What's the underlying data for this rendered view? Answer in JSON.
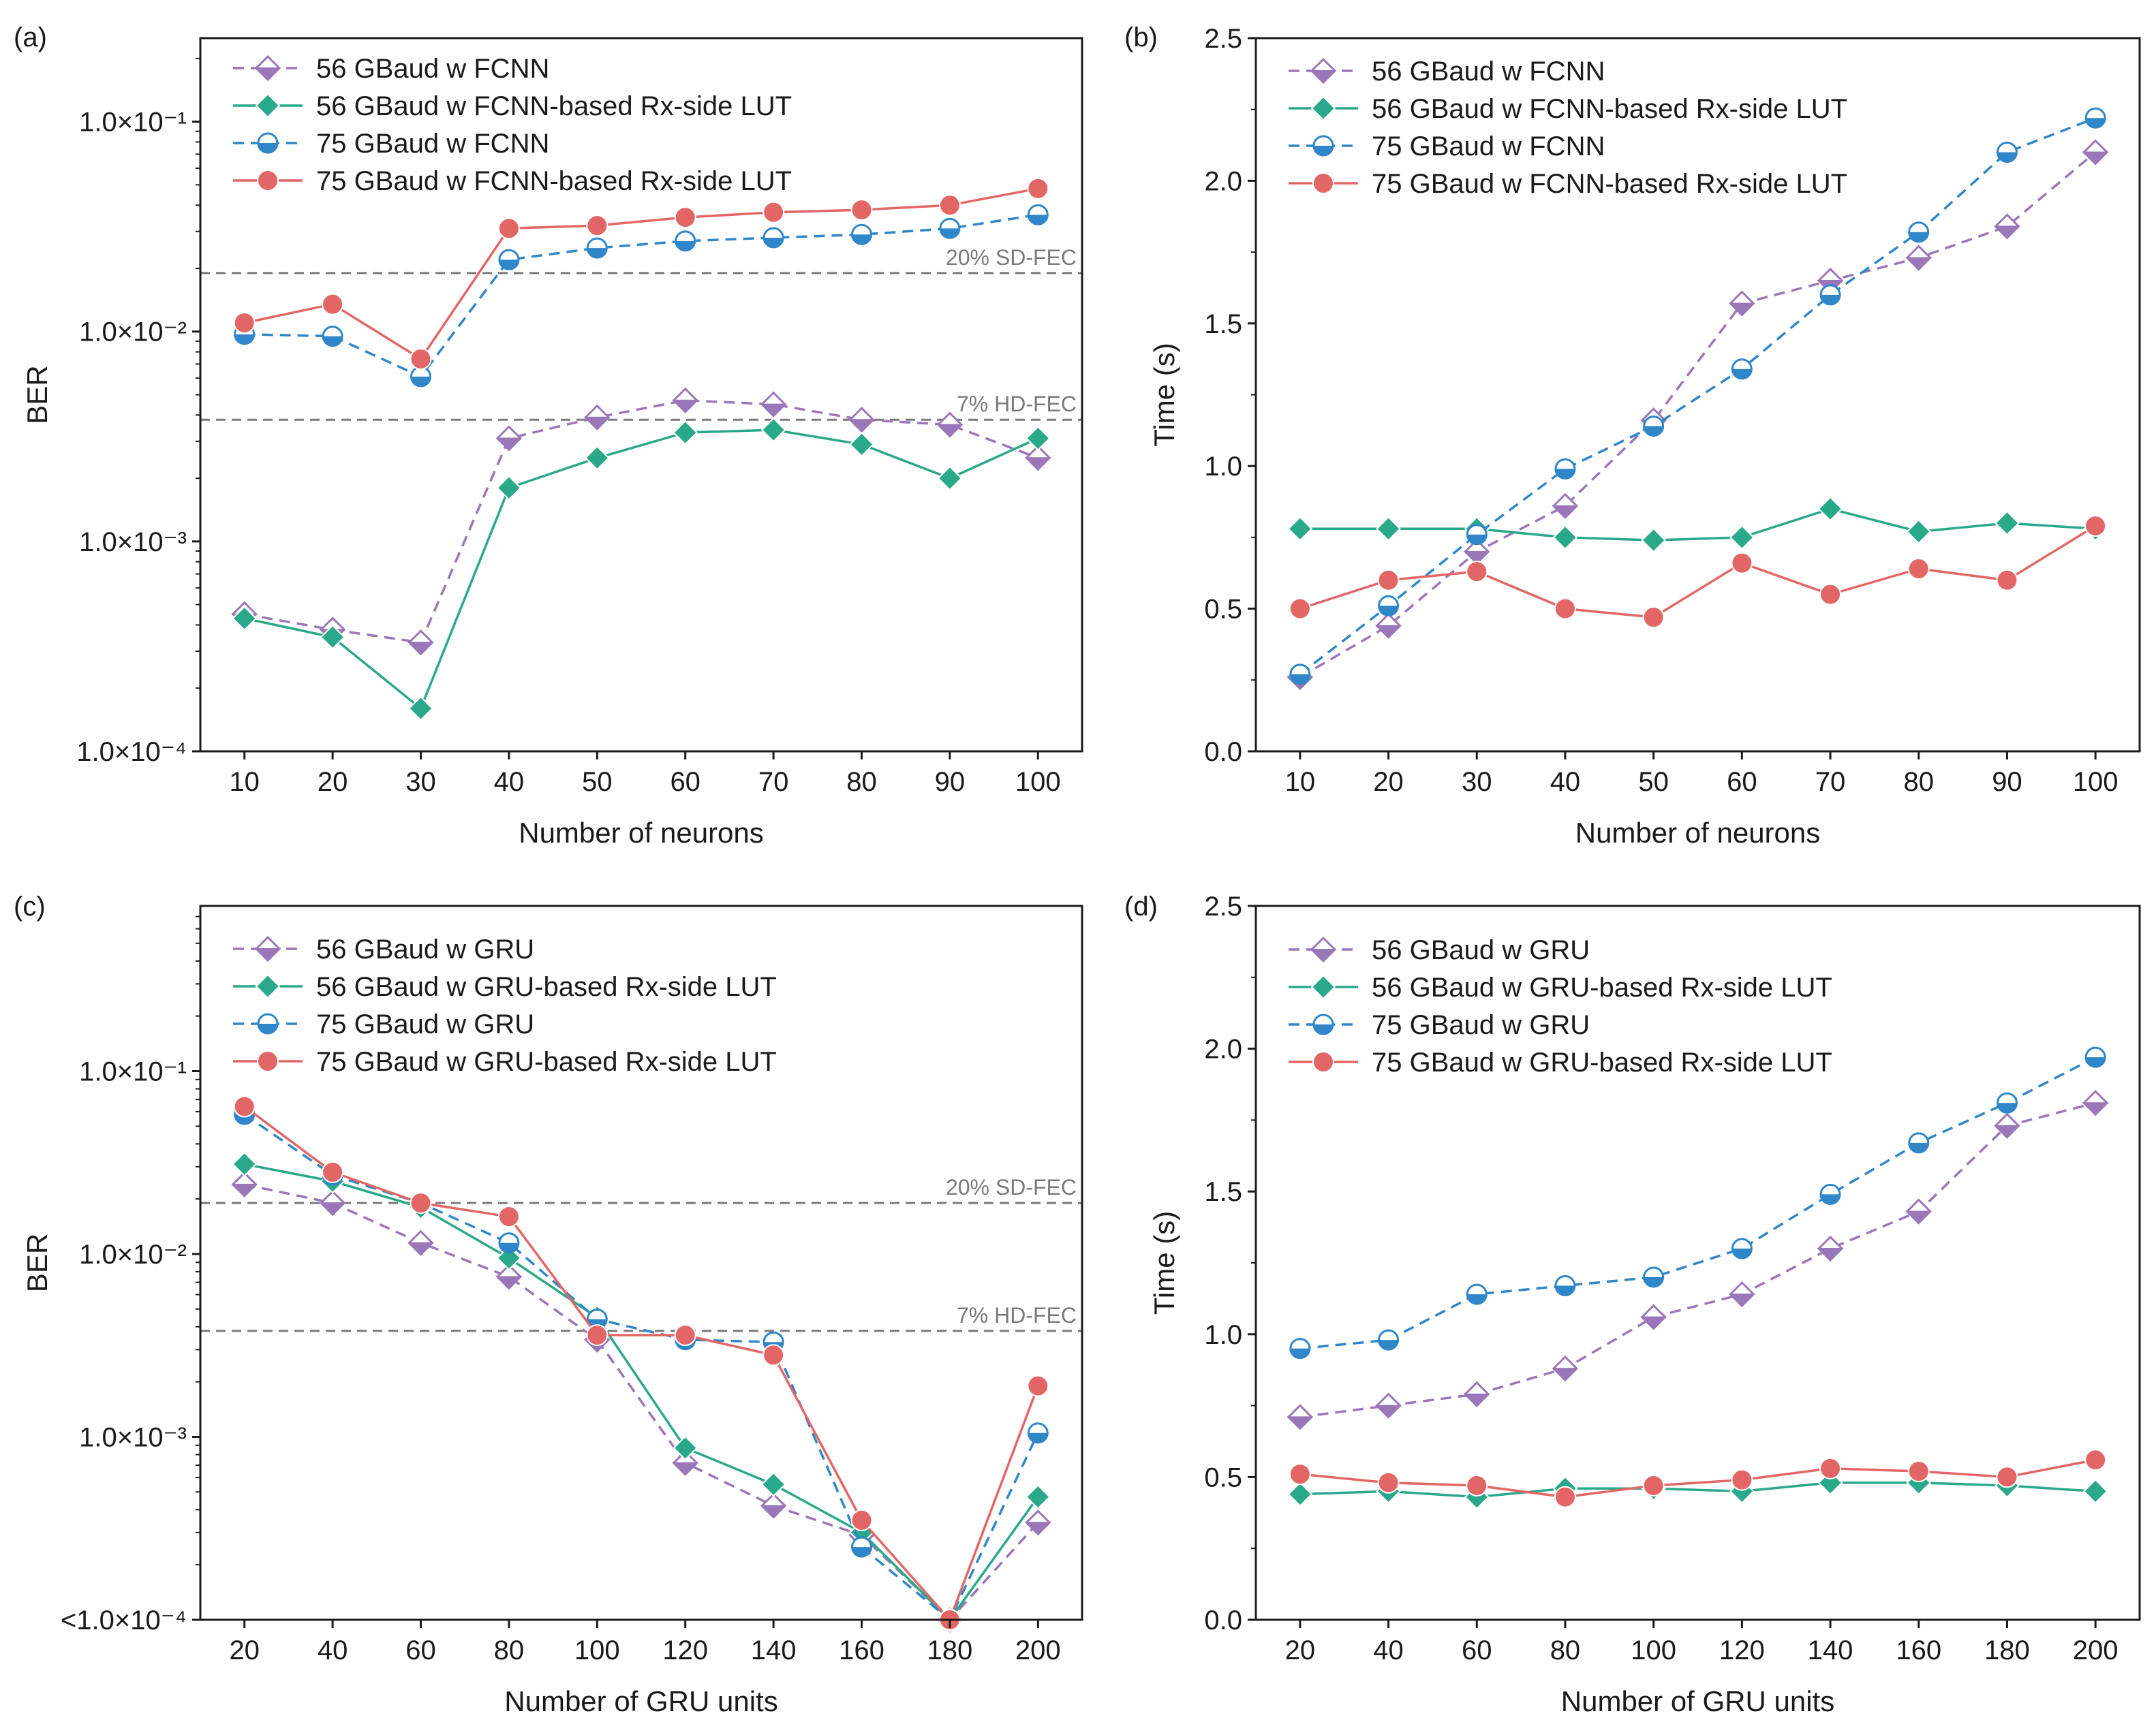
{
  "colors": {
    "purple": "#9a77b8",
    "teal": "#2aa88a",
    "blue": "#2f86c8",
    "red": "#e36666",
    "threshold": "#7a7a7a",
    "axis": "#1a1a1a"
  },
  "chart_data": [
    {
      "panel": "(a)",
      "type": "line",
      "yscale": "log",
      "x": [
        10,
        20,
        30,
        40,
        50,
        60,
        70,
        80,
        90,
        100
      ],
      "xlim": [
        5,
        105
      ],
      "ylim": [
        0.0001,
        0.25
      ],
      "xlabel": "Number of neurons",
      "ylabel": "BER",
      "yticks": [
        {
          "value": 0.0001,
          "label": "1.0×10⁻⁴"
        },
        {
          "value": 0.001,
          "label": "1.0×10⁻³"
        },
        {
          "value": 0.01,
          "label": "1.0×10⁻²"
        },
        {
          "value": 0.1,
          "label": "1.0×10⁻¹"
        }
      ],
      "thresholds": [
        {
          "value": 0.019,
          "label": "20% SD-FEC"
        },
        {
          "value": 0.0038,
          "label": "7% HD-FEC"
        }
      ],
      "series": [
        {
          "name": "56 GBaud w FCNN",
          "style": "purple-dashed-diamond",
          "values": [
            0.00045,
            0.00038,
            0.00033,
            0.0031,
            0.0039,
            0.0047,
            0.0045,
            0.0038,
            0.0036,
            0.0025
          ]
        },
        {
          "name": "56 GBaud w FCNN-based Rx-side LUT",
          "style": "teal-solid-diamond",
          "values": [
            0.00043,
            0.00035,
            0.00016,
            0.0018,
            0.0025,
            0.0033,
            0.0034,
            0.0029,
            0.002,
            0.0031
          ]
        },
        {
          "name": "75 GBaud w FCNN",
          "style": "blue-dashed-halfcircle",
          "values": [
            0.0097,
            0.0095,
            0.0061,
            0.022,
            0.025,
            0.027,
            0.028,
            0.029,
            0.031,
            0.036
          ]
        },
        {
          "name": "75 GBaud w FCNN-based Rx-side LUT",
          "style": "red-solid-circle",
          "values": [
            0.011,
            0.0135,
            0.0074,
            0.031,
            0.032,
            0.035,
            0.037,
            0.038,
            0.04,
            0.048
          ]
        }
      ]
    },
    {
      "panel": "(b)",
      "type": "line",
      "yscale": "linear",
      "x": [
        10,
        20,
        30,
        40,
        50,
        60,
        70,
        80,
        90,
        100
      ],
      "xlim": [
        5,
        105
      ],
      "ylim": [
        0,
        2.5
      ],
      "xlabel": "Number of neurons",
      "ylabel": "Time (s)",
      "yticks": [
        {
          "value": 0,
          "label": "0.0"
        },
        {
          "value": 0.5,
          "label": "0.5"
        },
        {
          "value": 1.0,
          "label": "1.0"
        },
        {
          "value": 1.5,
          "label": "1.5"
        },
        {
          "value": 2.0,
          "label": "2.0"
        },
        {
          "value": 2.5,
          "label": "2.5"
        }
      ],
      "thresholds": [],
      "series": [
        {
          "name": "56 GBaud w FCNN",
          "style": "purple-dashed-diamond",
          "values": [
            0.26,
            0.44,
            0.7,
            0.86,
            1.16,
            1.57,
            1.65,
            1.73,
            1.84,
            2.1
          ]
        },
        {
          "name": "56 GBaud w FCNN-based Rx-side LUT",
          "style": "teal-solid-diamond",
          "values": [
            0.78,
            0.78,
            0.78,
            0.75,
            0.74,
            0.75,
            0.85,
            0.77,
            0.8,
            0.78
          ]
        },
        {
          "name": "75 GBaud w FCNN",
          "style": "blue-dashed-halfcircle",
          "values": [
            0.27,
            0.51,
            0.76,
            0.99,
            1.14,
            1.34,
            1.6,
            1.82,
            2.1,
            2.22
          ]
        },
        {
          "name": "75 GBaud w FCNN-based Rx-side LUT",
          "style": "red-solid-circle",
          "values": [
            0.5,
            0.6,
            0.63,
            0.5,
            0.47,
            0.66,
            0.55,
            0.64,
            0.6,
            0.79
          ]
        }
      ]
    },
    {
      "panel": "(c)",
      "type": "line",
      "yscale": "log",
      "x": [
        20,
        40,
        60,
        80,
        100,
        120,
        140,
        160,
        180,
        200
      ],
      "xlim": [
        10,
        210
      ],
      "ylim": [
        0.0001,
        0.8
      ],
      "xlabel": "Number of GRU units",
      "ylabel": "BER",
      "yticks": [
        {
          "value": 0.0001,
          "label": "<1.0×10⁻⁴"
        },
        {
          "value": 0.001,
          "label": "1.0×10⁻³"
        },
        {
          "value": 0.01,
          "label": "1.0×10⁻²"
        },
        {
          "value": 0.1,
          "label": "1.0×10⁻¹"
        }
      ],
      "thresholds": [
        {
          "value": 0.019,
          "label": "20% SD-FEC"
        },
        {
          "value": 0.0038,
          "label": "7% HD-FEC"
        }
      ],
      "series": [
        {
          "name": "56 GBaud w GRU",
          "style": "purple-dashed-diamond",
          "values": [
            0.024,
            0.019,
            0.0115,
            0.0075,
            0.0034,
            0.00072,
            0.00042,
            0.00029,
            0.0001,
            0.00034
          ]
        },
        {
          "name": "56 GBaud w GRU-based Rx-side LUT",
          "style": "teal-solid-diamond",
          "values": [
            0.031,
            0.025,
            0.018,
            0.0095,
            0.0045,
            0.00087,
            0.00055,
            0.0003,
            0.0001,
            0.00047
          ]
        },
        {
          "name": "75 GBaud w GRU",
          "style": "blue-dashed-halfcircle",
          "values": [
            0.058,
            0.027,
            0.019,
            0.0115,
            0.0044,
            0.0034,
            0.0033,
            0.00025,
            0.0001,
            0.00105
          ]
        },
        {
          "name": "75 GBaud w GRU-based Rx-side LUT",
          "style": "red-solid-circle",
          "values": [
            0.064,
            0.028,
            0.019,
            0.016,
            0.0036,
            0.0036,
            0.0028,
            0.00035,
            0.0001,
            0.0019
          ]
        }
      ]
    },
    {
      "panel": "(d)",
      "type": "line",
      "yscale": "linear",
      "x": [
        20,
        40,
        60,
        80,
        100,
        120,
        140,
        160,
        180,
        200
      ],
      "xlim": [
        10,
        210
      ],
      "ylim": [
        0,
        2.5
      ],
      "xlabel": "Number of GRU units",
      "ylabel": "Time (s)",
      "yticks": [
        {
          "value": 0,
          "label": "0.0"
        },
        {
          "value": 0.5,
          "label": "0.5"
        },
        {
          "value": 1.0,
          "label": "1.0"
        },
        {
          "value": 1.5,
          "label": "1.5"
        },
        {
          "value": 2.0,
          "label": "2.0"
        },
        {
          "value": 2.5,
          "label": "2.5"
        }
      ],
      "thresholds": [],
      "series": [
        {
          "name": "56 GBaud w GRU",
          "style": "purple-dashed-diamond",
          "values": [
            0.71,
            0.75,
            0.79,
            0.88,
            1.06,
            1.14,
            1.3,
            1.43,
            1.73,
            1.81
          ]
        },
        {
          "name": "56 GBaud w GRU-based Rx-side LUT",
          "style": "teal-solid-diamond",
          "values": [
            0.44,
            0.45,
            0.43,
            0.46,
            0.46,
            0.45,
            0.48,
            0.48,
            0.47,
            0.45
          ]
        },
        {
          "name": "75 GBaud w GRU",
          "style": "blue-dashed-halfcircle",
          "values": [
            0.95,
            0.98,
            1.14,
            1.17,
            1.2,
            1.3,
            1.49,
            1.67,
            1.81,
            1.97
          ]
        },
        {
          "name": "75 GBaud w GRU-based Rx-side LUT",
          "style": "red-solid-circle",
          "values": [
            0.51,
            0.48,
            0.47,
            0.43,
            0.47,
            0.49,
            0.53,
            0.52,
            0.5,
            0.56
          ]
        }
      ]
    }
  ]
}
